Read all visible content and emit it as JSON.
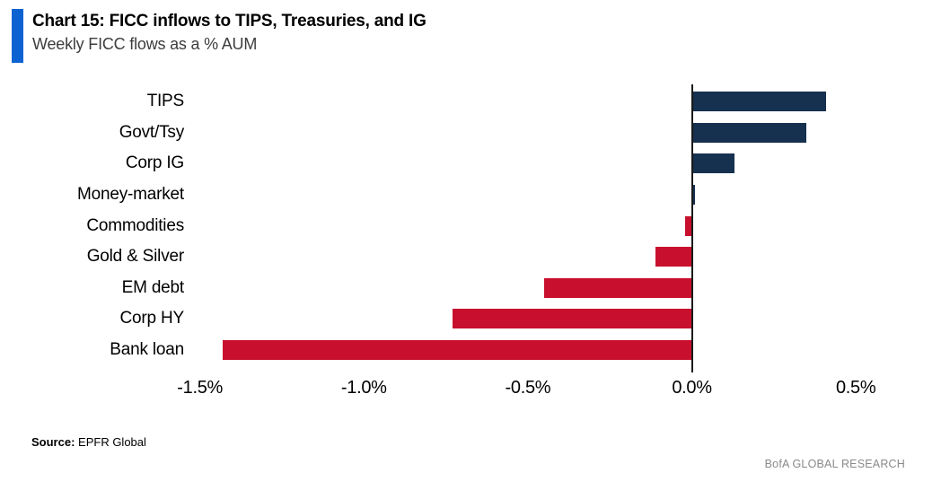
{
  "header": {
    "title": "Chart 15: FICC inflows to TIPS, Treasuries, and IG",
    "subtitle": "Weekly FICC flows as a % AUM"
  },
  "footer": {
    "source_label": "Source:",
    "source_value": "EPFR Global",
    "brand": "BofA GLOBAL RESEARCH"
  },
  "colors": {
    "accent_blue": "#0d62d2",
    "positive_navy": "#16304f",
    "negative_red": "#c8102e",
    "axis_black": "#1a1a1a",
    "brand_gray": "#8a8a8a"
  },
  "chart_data": {
    "type": "bar",
    "orientation": "horizontal",
    "title": "Chart 15: FICC inflows to TIPS, Treasuries, and IG",
    "subtitle": "Weekly FICC flows as a % AUM",
    "unit": "% of AUM, weekly flow",
    "categories": [
      "TIPS",
      "Govt/Tsy",
      "Corp IG",
      "Money-market",
      "Commodities",
      "Gold & Silver",
      "EM debt",
      "Corp HY",
      "Bank loan"
    ],
    "values": [
      0.41,
      0.35,
      0.13,
      0.01,
      -0.02,
      -0.11,
      -0.45,
      -0.73,
      -1.43
    ],
    "xlim": [
      -1.521,
      0.724
    ],
    "xticks": [
      -1.5,
      -1.0,
      -0.5,
      0.0,
      0.5
    ],
    "xtick_labels": [
      "-1.5%",
      "-1.0%",
      "-0.5%",
      "0.0%",
      "0.5%"
    ],
    "positive_color": "#16304f",
    "negative_color": "#c8102e",
    "grid": false,
    "legend": false
  }
}
